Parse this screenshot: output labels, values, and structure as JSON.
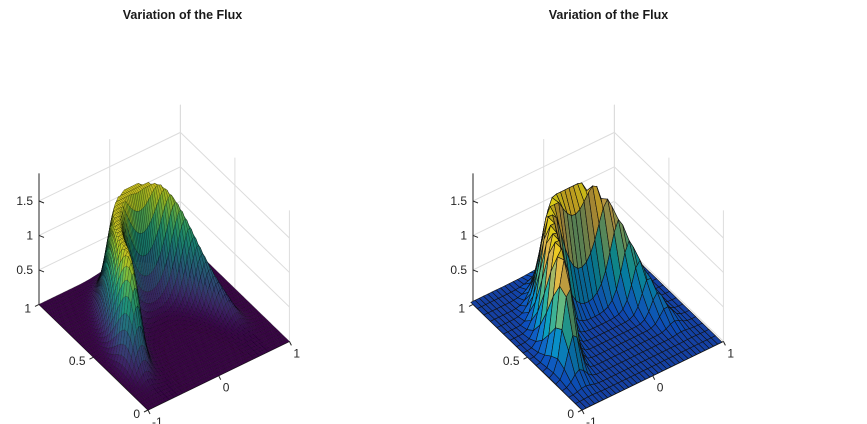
{
  "chart_data": [
    {
      "type": "surface",
      "title": "Variation of the Flux",
      "xlabel": "",
      "ylabel": "",
      "zlabel": "",
      "xlim": [
        -1,
        1
      ],
      "ylim": [
        0,
        1
      ],
      "zlim": [
        0,
        1.9
      ],
      "x_ticks": [
        "-1",
        "0",
        "1"
      ],
      "y_ticks": [
        "0",
        "0.5",
        "1"
      ],
      "z_ticks": [
        "0.5",
        "1",
        "1.5"
      ],
      "grid": true,
      "colormap": "viridis",
      "mesh": "fine",
      "surface_peak": 1.5,
      "contours_on_base": true
    },
    {
      "type": "surface",
      "title": "Variation of the Flux",
      "xlabel": "",
      "ylabel": "",
      "zlabel": "",
      "xlim": [
        -1,
        1
      ],
      "ylim": [
        0,
        1
      ],
      "zlim": [
        0,
        1.9
      ],
      "x_ticks": [
        "-1",
        "0",
        "1"
      ],
      "y_ticks": [
        "0",
        "0.5",
        "1"
      ],
      "z_ticks": [
        "0.5",
        "1",
        "1.5"
      ],
      "grid": true,
      "colormap": "parula",
      "mesh": "coarse",
      "surface_peak": 1.5,
      "contours_on_base": true
    }
  ]
}
